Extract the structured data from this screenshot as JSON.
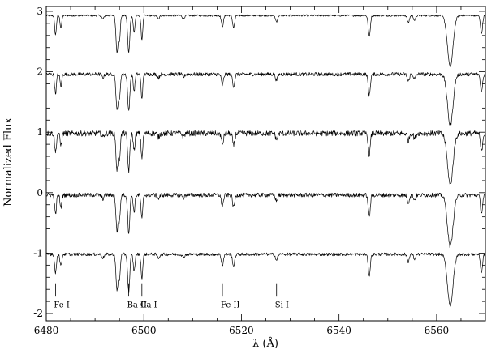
{
  "chart_data": {
    "type": "line",
    "xlabel": "λ (Å)",
    "ylabel": "Normalized Flux",
    "xlim": [
      6480,
      6570
    ],
    "ylim": [
      -2.12,
      3.08
    ],
    "x_ticks": [
      6480,
      6500,
      6520,
      6540,
      6560
    ],
    "y_ticks": [
      -2,
      -1,
      0,
      1,
      2,
      3
    ],
    "grid": false,
    "legend": "none",
    "series": [
      {
        "offset": 2.93,
        "noise": 0.015
      },
      {
        "offset": 1.96,
        "noise": 0.03
      },
      {
        "offset": 0.98,
        "noise": 0.045
      },
      {
        "offset": -0.04,
        "noise": 0.035
      },
      {
        "offset": -1.02,
        "noise": 0.025
      }
    ],
    "absorption_lines": [
      {
        "x": 6481.9,
        "depth": 0.32,
        "width": 0.25
      },
      {
        "x": 6483.0,
        "depth": 0.2,
        "width": 0.25
      },
      {
        "x": 6491.6,
        "depth": 0.06,
        "width": 0.3
      },
      {
        "x": 6494.5,
        "depth": 0.6,
        "width": 0.3
      },
      {
        "x": 6495.0,
        "depth": 0.4,
        "width": 0.25
      },
      {
        "x": 6496.9,
        "depth": 0.62,
        "width": 0.3
      },
      {
        "x": 6498.0,
        "depth": 0.28,
        "width": 0.25
      },
      {
        "x": 6499.6,
        "depth": 0.4,
        "width": 0.25
      },
      {
        "x": 6503.0,
        "depth": 0.06,
        "width": 0.3
      },
      {
        "x": 6508.1,
        "depth": 0.05,
        "width": 0.3
      },
      {
        "x": 6516.1,
        "depth": 0.18,
        "width": 0.3
      },
      {
        "x": 6518.4,
        "depth": 0.2,
        "width": 0.3
      },
      {
        "x": 6527.2,
        "depth": 0.1,
        "width": 0.3
      },
      {
        "x": 6546.2,
        "depth": 0.35,
        "width": 0.3
      },
      {
        "x": 6554.2,
        "depth": 0.12,
        "width": 0.3
      },
      {
        "x": 6555.5,
        "depth": 0.08,
        "width": 0.3
      },
      {
        "x": 6562.8,
        "depth": 0.85,
        "width": 0.8
      },
      {
        "x": 6569.2,
        "depth": 0.3,
        "width": 0.3
      }
    ],
    "markers": [
      {
        "label": "Fe I",
        "x": 6481.9
      },
      {
        "label": "Ba II",
        "x": 6496.9
      },
      {
        "label": "Ca I",
        "x": 6499.6
      },
      {
        "label": "Fe II",
        "x": 6516.1
      },
      {
        "label": "Si I",
        "x": 6527.2
      }
    ]
  }
}
